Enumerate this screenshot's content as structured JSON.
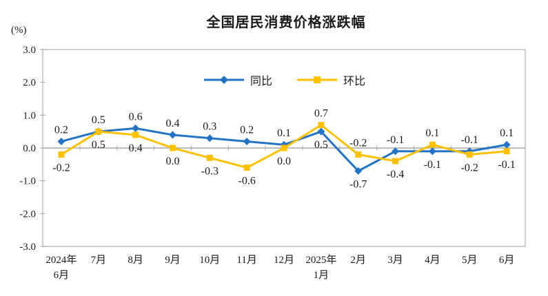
{
  "chart_data": {
    "type": "line",
    "title": "全国居民消费价格涨跌幅",
    "unit_label": "(%)",
    "categories": [
      "2024年\n6月",
      "7月",
      "8月",
      "9月",
      "10月",
      "11月",
      "12月",
      "2025年\n1月",
      "2月",
      "3月",
      "4月",
      "5月",
      "6月"
    ],
    "ylim": [
      -3.0,
      3.0
    ],
    "yticks": [
      "3.0",
      "2.0",
      "1.0",
      "0.0",
      "-1.0",
      "-2.0",
      "-3.0"
    ],
    "grid": false,
    "legend_position": "top-center",
    "axis_color": "#BFBFBF",
    "zero_line_color": "#A6A6A6",
    "text_color": "#1a1a1a",
    "series": [
      {
        "name": "同比",
        "color": "#2373C5",
        "marker": "diamond",
        "values": [
          0.2,
          0.5,
          0.6,
          0.4,
          0.3,
          0.2,
          0.1,
          0.5,
          -0.7,
          -0.1,
          -0.1,
          -0.1,
          0.1
        ],
        "labels": [
          "0.2",
          "0.5",
          "0.6",
          "0.4",
          "0.3",
          "0.2",
          "0.1",
          "0.5",
          "-0.7",
          "-0.1",
          "-0.1",
          "-0.1",
          "0.1"
        ],
        "label_pos": [
          "above",
          "above",
          "above",
          "above",
          "above",
          "above",
          "above",
          "below",
          "below",
          "above",
          "below",
          "above",
          "above"
        ]
      },
      {
        "name": "环比",
        "color": "#FFC000",
        "marker": "square",
        "values": [
          -0.2,
          0.5,
          0.4,
          0.0,
          -0.3,
          -0.6,
          0.0,
          0.7,
          -0.2,
          -0.4,
          0.1,
          -0.2,
          -0.1
        ],
        "labels": [
          "-0.2",
          "0.5",
          "0.4",
          "0.0",
          "-0.3",
          "-0.6",
          "0.0",
          "0.7",
          "-0.2",
          "-0.4",
          "0.1",
          "-0.2",
          "-0.1"
        ],
        "label_pos": [
          "below",
          "below",
          "below",
          "below",
          "below",
          "below",
          "below",
          "above",
          "above",
          "below",
          "above",
          "below",
          "below"
        ]
      }
    ]
  }
}
